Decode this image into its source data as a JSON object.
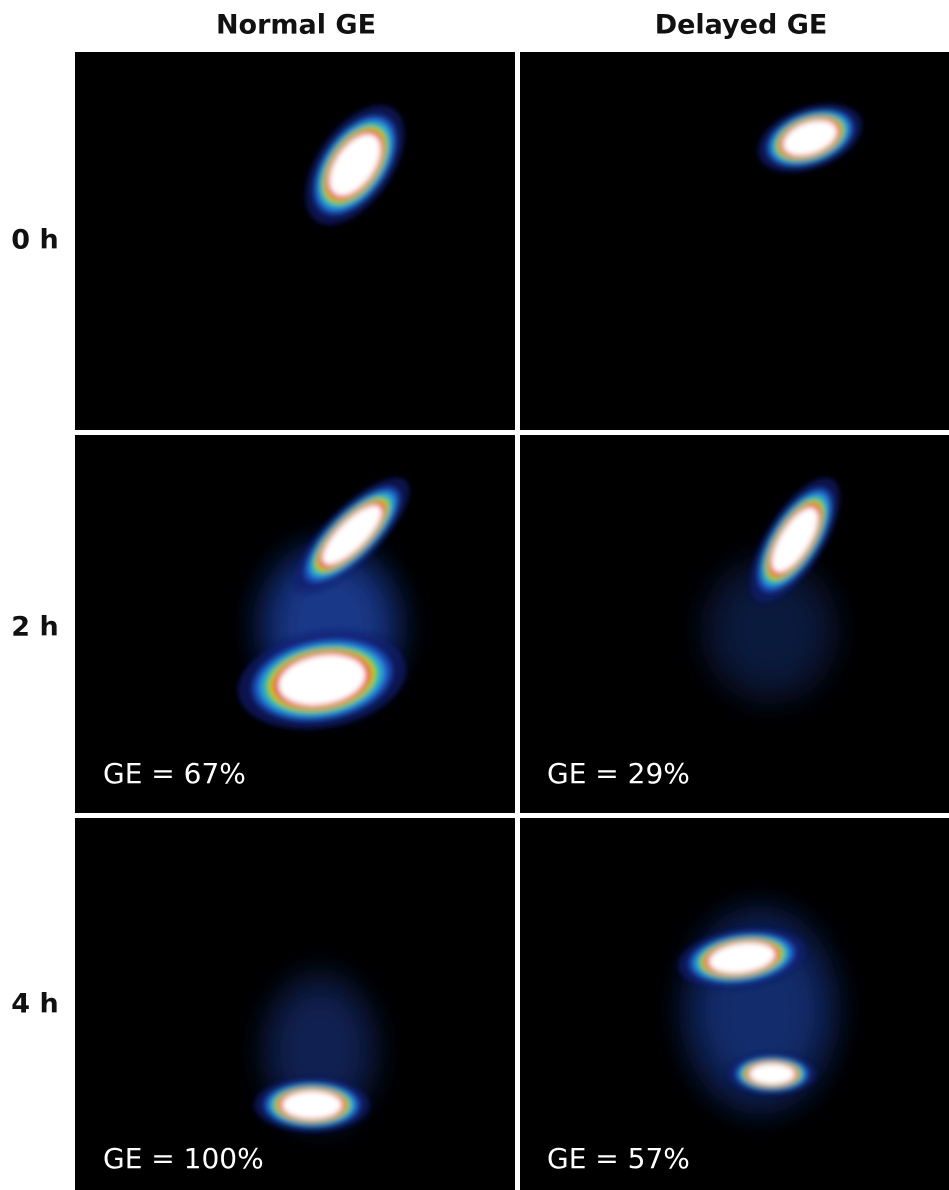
{
  "columns": [
    "Normal GE",
    "Delayed GE"
  ],
  "rows": [
    {
      "label": "0 h"
    },
    {
      "label": "2 h",
      "ge": [
        "GE = 67%",
        "GE = 29%"
      ]
    },
    {
      "label": "4 h",
      "ge": [
        "GE = 100%",
        "GE = 57%"
      ]
    }
  ]
}
